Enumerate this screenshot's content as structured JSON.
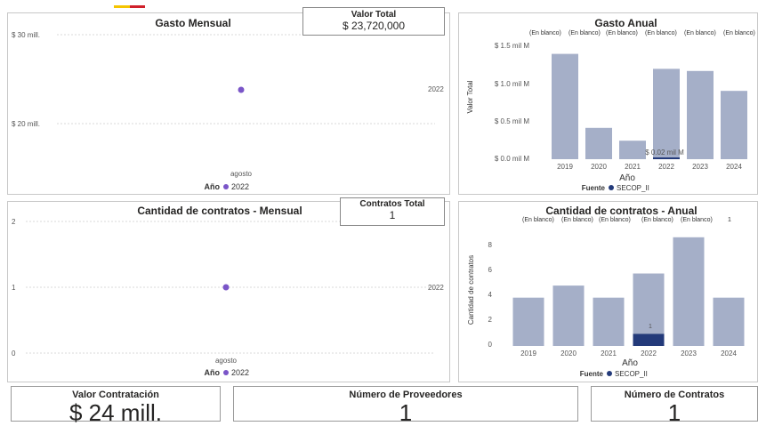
{
  "colors": {
    "bar": "#a5afc8",
    "bar_dark": "#233a7a",
    "point": "#7a55c8",
    "grid": "#d9d9d9",
    "logo_yellow": "#f5c400",
    "logo_red": "#d0202a"
  },
  "gasto_mensual": {
    "title": "Gasto Mensual",
    "y_ticks": [
      "$ 30 mill.",
      "$ 20 mill."
    ],
    "point_label": "2022",
    "x_label": "agosto",
    "legend_title": "Año",
    "legend_item": "2022",
    "chart_data": {
      "type": "scatter",
      "x": [
        "agosto"
      ],
      "y": [
        23.72
      ],
      "series": [
        {
          "name": "2022",
          "values": [
            23.72
          ]
        }
      ],
      "ylim": [
        13,
        33
      ]
    }
  },
  "valor_total": {
    "label": "Valor Total",
    "value": "$ 23,720,000"
  },
  "gasto_anual": {
    "title": "Gasto Anual",
    "top_labels": [
      "(En blanco)",
      "(En blanco)",
      "(En blanco)",
      "(En blanco)",
      "(En blanco)",
      "(En blanco)"
    ],
    "y_ticks": [
      "$ 1.5 mil M",
      "$ 1.0 mil M",
      "$ 0.5 mil M",
      "$ 0.0 mil M"
    ],
    "ylabel": "Valor Total",
    "xlabel": "Año",
    "secop_label": "$ 0.02 mil M",
    "legend_title": "Fuente",
    "legend_item": "SECOP_II",
    "chart_data": {
      "type": "bar",
      "categories": [
        "2019",
        "2020",
        "2021",
        "2022",
        "2023",
        "2024"
      ],
      "series": [
        {
          "name": "(En blanco)",
          "values": [
            1.48,
            0.44,
            0.26,
            1.27,
            1.24,
            0.96
          ]
        },
        {
          "name": "SECOP_II",
          "values": [
            0,
            0,
            0,
            0.02,
            0,
            0
          ]
        }
      ],
      "ylim": [
        0,
        1.6
      ]
    }
  },
  "contratos_mensual": {
    "title": "Cantidad de contratos - Mensual",
    "y_ticks": [
      "2",
      "1",
      "0"
    ],
    "point_label": "2022",
    "x_label": "agosto",
    "legend_title": "Año",
    "legend_item": "2022",
    "chart_data": {
      "type": "scatter",
      "x": [
        "agosto"
      ],
      "y": [
        1
      ],
      "series": [
        {
          "name": "2022",
          "values": [
            1
          ]
        }
      ],
      "ylim": [
        0,
        2
      ]
    }
  },
  "contratos_total": {
    "label": "Contratos Total",
    "value": "1"
  },
  "contratos_anual": {
    "title": "Cantidad de contratos - Anual",
    "top_labels": [
      "(En blanco)",
      "(En blanco)",
      "(En blanco)",
      "(En blanco)",
      "(En blanco)",
      "1"
    ],
    "y_ticks": [
      "8",
      "6",
      "4",
      "2",
      "0"
    ],
    "ylabel": "Cantidad de contratos",
    "xlabel": "Año",
    "secop_label": "1",
    "legend_title": "Fuente",
    "legend_item": "SECOP_II",
    "chart_data": {
      "type": "bar",
      "categories": [
        "2019",
        "2020",
        "2021",
        "2022",
        "2023",
        "2024"
      ],
      "series": [
        {
          "name": "(En blanco)",
          "values": [
            4,
            5,
            4,
            6,
            9,
            4
          ]
        },
        {
          "name": "SECOP_II",
          "values": [
            0,
            0,
            0,
            1,
            0,
            0
          ]
        }
      ],
      "ylim": [
        0,
        9.5
      ]
    }
  },
  "cards": [
    {
      "label": "Valor Contratación",
      "value": "$ 24 mill."
    },
    {
      "label": "Número de Proveedores",
      "value": "1"
    },
    {
      "label": "Número de Contratos",
      "value": "1"
    }
  ]
}
